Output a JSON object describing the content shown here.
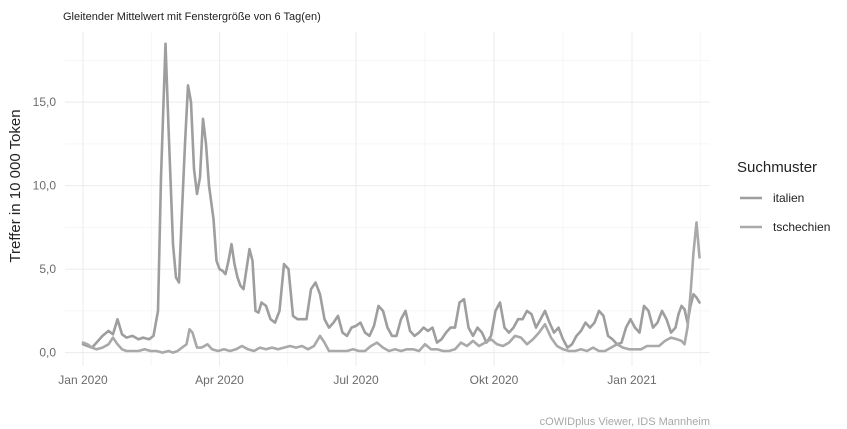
{
  "chart_data": {
    "type": "line",
    "subtitle": "Gleitender Mittelwert mit Fenstergröße von 6 Tag(en)",
    "xlabel": "",
    "ylabel": "Treffer in 10 000 Token",
    "caption": "cOWIDplus Viewer, IDS Mannheim",
    "x_range": [
      "2019-12-20",
      "2021-02-22"
    ],
    "ylim": [
      -0.8,
      19.2
    ],
    "grid": true,
    "legend": {
      "title": "Suchmuster",
      "position": "right"
    },
    "x_ticks": [
      {
        "date": "2020-01-01",
        "label": "Jan 2020"
      },
      {
        "date": "2020-04-01",
        "label": "Apr 2020"
      },
      {
        "date": "2020-07-01",
        "label": "Jul 2020"
      },
      {
        "date": "2020-10-01",
        "label": "Okt 2020"
      },
      {
        "date": "2021-01-01",
        "label": "Jan 2021"
      }
    ],
    "y_ticks": [
      {
        "value": 0,
        "label": "0,0"
      },
      {
        "value": 5,
        "label": "5,0"
      },
      {
        "value": 10,
        "label": "10,0"
      },
      {
        "value": 15,
        "label": "15,0"
      }
    ],
    "series": [
      {
        "name": "italien",
        "color": "#9e9e9e",
        "points": [
          [
            "2020-01-01",
            0.5
          ],
          [
            "2020-01-04",
            0.4
          ],
          [
            "2020-01-07",
            0.3
          ],
          [
            "2020-01-10",
            0.6
          ],
          [
            "2020-01-14",
            1.0
          ],
          [
            "2020-01-18",
            1.3
          ],
          [
            "2020-01-21",
            1.1
          ],
          [
            "2020-01-24",
            2.0
          ],
          [
            "2020-01-27",
            1.1
          ],
          [
            "2020-01-30",
            0.9
          ],
          [
            "2020-02-03",
            1.0
          ],
          [
            "2020-02-07",
            0.8
          ],
          [
            "2020-02-10",
            0.9
          ],
          [
            "2020-02-14",
            0.8
          ],
          [
            "2020-02-17",
            1.0
          ],
          [
            "2020-02-20",
            2.5
          ],
          [
            "2020-02-22",
            10.5
          ],
          [
            "2020-02-25",
            18.5
          ],
          [
            "2020-02-27",
            13.5
          ],
          [
            "2020-03-01",
            6.5
          ],
          [
            "2020-03-03",
            4.5
          ],
          [
            "2020-03-05",
            4.2
          ],
          [
            "2020-03-07",
            8.5
          ],
          [
            "2020-03-09",
            12.5
          ],
          [
            "2020-03-11",
            16.0
          ],
          [
            "2020-03-13",
            15.0
          ],
          [
            "2020-03-15",
            11.0
          ],
          [
            "2020-03-17",
            9.5
          ],
          [
            "2020-03-19",
            10.5
          ],
          [
            "2020-03-21",
            14.0
          ],
          [
            "2020-03-23",
            12.5
          ],
          [
            "2020-03-25",
            10.0
          ],
          [
            "2020-03-28",
            8.0
          ],
          [
            "2020-03-30",
            5.5
          ],
          [
            "2020-04-01",
            5.0
          ],
          [
            "2020-04-03",
            4.9
          ],
          [
            "2020-04-05",
            4.7
          ],
          [
            "2020-04-07",
            5.5
          ],
          [
            "2020-04-09",
            6.5
          ],
          [
            "2020-04-11",
            5.3
          ],
          [
            "2020-04-13",
            4.5
          ],
          [
            "2020-04-15",
            4.0
          ],
          [
            "2020-04-17",
            3.8
          ],
          [
            "2020-04-19",
            5.0
          ],
          [
            "2020-04-21",
            6.2
          ],
          [
            "2020-04-23",
            5.5
          ],
          [
            "2020-04-25",
            2.5
          ],
          [
            "2020-04-27",
            2.4
          ],
          [
            "2020-04-29",
            3.0
          ],
          [
            "2020-05-02",
            2.8
          ],
          [
            "2020-05-05",
            2.0
          ],
          [
            "2020-05-08",
            1.8
          ],
          [
            "2020-05-11",
            2.5
          ],
          [
            "2020-05-14",
            5.3
          ],
          [
            "2020-05-17",
            5.0
          ],
          [
            "2020-05-20",
            2.2
          ],
          [
            "2020-05-23",
            2.0
          ],
          [
            "2020-05-26",
            2.0
          ],
          [
            "2020-05-29",
            2.0
          ],
          [
            "2020-06-01",
            3.8
          ],
          [
            "2020-06-04",
            4.2
          ],
          [
            "2020-06-07",
            3.5
          ],
          [
            "2020-06-10",
            2.0
          ],
          [
            "2020-06-13",
            1.5
          ],
          [
            "2020-06-16",
            1.8
          ],
          [
            "2020-06-19",
            2.2
          ],
          [
            "2020-06-22",
            1.2
          ],
          [
            "2020-06-25",
            1.0
          ],
          [
            "2020-06-28",
            1.5
          ],
          [
            "2020-07-01",
            1.6
          ],
          [
            "2020-07-04",
            1.8
          ],
          [
            "2020-07-07",
            1.2
          ],
          [
            "2020-07-10",
            1.0
          ],
          [
            "2020-07-13",
            1.6
          ],
          [
            "2020-07-16",
            2.8
          ],
          [
            "2020-07-19",
            2.5
          ],
          [
            "2020-07-22",
            1.5
          ],
          [
            "2020-07-25",
            1.0
          ],
          [
            "2020-07-28",
            1.0
          ],
          [
            "2020-07-31",
            2.0
          ],
          [
            "2020-08-03",
            2.5
          ],
          [
            "2020-08-06",
            1.3
          ],
          [
            "2020-08-09",
            1.0
          ],
          [
            "2020-08-12",
            1.2
          ],
          [
            "2020-08-15",
            1.5
          ],
          [
            "2020-08-18",
            1.3
          ],
          [
            "2020-08-21",
            1.5
          ],
          [
            "2020-08-24",
            0.6
          ],
          [
            "2020-08-27",
            0.8
          ],
          [
            "2020-08-30",
            1.2
          ],
          [
            "2020-09-02",
            1.5
          ],
          [
            "2020-09-05",
            1.5
          ],
          [
            "2020-09-08",
            3.0
          ],
          [
            "2020-09-11",
            3.2
          ],
          [
            "2020-09-14",
            1.5
          ],
          [
            "2020-09-17",
            1.0
          ],
          [
            "2020-09-20",
            1.5
          ],
          [
            "2020-09-23",
            1.2
          ],
          [
            "2020-09-26",
            0.6
          ],
          [
            "2020-09-29",
            1.0
          ],
          [
            "2020-10-02",
            2.5
          ],
          [
            "2020-10-05",
            3.0
          ],
          [
            "2020-10-08",
            1.5
          ],
          [
            "2020-10-11",
            1.2
          ],
          [
            "2020-10-14",
            1.5
          ],
          [
            "2020-10-17",
            2.0
          ],
          [
            "2020-10-20",
            2.0
          ],
          [
            "2020-10-23",
            2.5
          ],
          [
            "2020-10-26",
            2.3
          ],
          [
            "2020-10-29",
            1.5
          ],
          [
            "2020-11-01",
            2.0
          ],
          [
            "2020-11-04",
            2.5
          ],
          [
            "2020-11-07",
            1.8
          ],
          [
            "2020-11-10",
            1.2
          ],
          [
            "2020-11-13",
            1.5
          ],
          [
            "2020-11-16",
            0.8
          ],
          [
            "2020-11-19",
            0.3
          ],
          [
            "2020-11-22",
            0.5
          ],
          [
            "2020-11-25",
            1.0
          ],
          [
            "2020-11-28",
            1.3
          ],
          [
            "2020-12-01",
            1.8
          ],
          [
            "2020-12-04",
            1.5
          ],
          [
            "2020-12-07",
            1.8
          ],
          [
            "2020-12-10",
            2.5
          ],
          [
            "2020-12-13",
            2.2
          ],
          [
            "2020-12-16",
            1.0
          ],
          [
            "2020-12-19",
            0.8
          ],
          [
            "2020-12-22",
            0.5
          ],
          [
            "2020-12-25",
            0.6
          ],
          [
            "2020-12-28",
            1.5
          ],
          [
            "2020-12-31",
            2.0
          ],
          [
            "2021-01-03",
            1.5
          ],
          [
            "2021-01-06",
            1.2
          ],
          [
            "2021-01-09",
            2.8
          ],
          [
            "2021-01-12",
            2.5
          ],
          [
            "2021-01-15",
            1.5
          ],
          [
            "2021-01-18",
            1.8
          ],
          [
            "2021-01-21",
            2.5
          ],
          [
            "2021-01-24",
            2.0
          ],
          [
            "2021-01-27",
            1.2
          ],
          [
            "2021-01-30",
            1.5
          ],
          [
            "2021-02-01",
            2.3
          ],
          [
            "2021-02-03",
            2.8
          ],
          [
            "2021-02-05",
            2.6
          ],
          [
            "2021-02-07",
            1.8
          ],
          [
            "2021-02-09",
            2.8
          ],
          [
            "2021-02-11",
            3.5
          ],
          [
            "2021-02-13",
            3.3
          ],
          [
            "2021-02-15",
            3.0
          ]
        ]
      },
      {
        "name": "tschechien",
        "color": "#a9a9a9",
        "points": [
          [
            "2020-01-01",
            0.6
          ],
          [
            "2020-01-04",
            0.5
          ],
          [
            "2020-01-07",
            0.3
          ],
          [
            "2020-01-10",
            0.2
          ],
          [
            "2020-01-14",
            0.3
          ],
          [
            "2020-01-18",
            0.5
          ],
          [
            "2020-01-21",
            0.9
          ],
          [
            "2020-01-24",
            0.5
          ],
          [
            "2020-01-27",
            0.2
          ],
          [
            "2020-01-30",
            0.1
          ],
          [
            "2020-02-03",
            0.1
          ],
          [
            "2020-02-07",
            0.1
          ],
          [
            "2020-02-11",
            0.2
          ],
          [
            "2020-02-15",
            0.1
          ],
          [
            "2020-02-19",
            0.1
          ],
          [
            "2020-02-23",
            0.0
          ],
          [
            "2020-02-27",
            0.1
          ],
          [
            "2020-03-01",
            0.0
          ],
          [
            "2020-03-04",
            0.1
          ],
          [
            "2020-03-07",
            0.3
          ],
          [
            "2020-03-10",
            0.5
          ],
          [
            "2020-03-12",
            1.4
          ],
          [
            "2020-03-14",
            1.2
          ],
          [
            "2020-03-17",
            0.3
          ],
          [
            "2020-03-20",
            0.3
          ],
          [
            "2020-03-24",
            0.5
          ],
          [
            "2020-03-27",
            0.2
          ],
          [
            "2020-03-31",
            0.1
          ],
          [
            "2020-04-04",
            0.2
          ],
          [
            "2020-04-08",
            0.1
          ],
          [
            "2020-04-12",
            0.2
          ],
          [
            "2020-04-16",
            0.4
          ],
          [
            "2020-04-20",
            0.2
          ],
          [
            "2020-04-24",
            0.1
          ],
          [
            "2020-04-28",
            0.3
          ],
          [
            "2020-05-02",
            0.2
          ],
          [
            "2020-05-06",
            0.3
          ],
          [
            "2020-05-10",
            0.2
          ],
          [
            "2020-05-14",
            0.3
          ],
          [
            "2020-05-18",
            0.4
          ],
          [
            "2020-05-22",
            0.3
          ],
          [
            "2020-05-26",
            0.4
          ],
          [
            "2020-05-30",
            0.2
          ],
          [
            "2020-06-03",
            0.4
          ],
          [
            "2020-06-07",
            1.0
          ],
          [
            "2020-06-10",
            0.6
          ],
          [
            "2020-06-13",
            0.1
          ],
          [
            "2020-06-17",
            0.1
          ],
          [
            "2020-06-21",
            0.1
          ],
          [
            "2020-06-25",
            0.1
          ],
          [
            "2020-06-29",
            0.2
          ],
          [
            "2020-07-03",
            0.1
          ],
          [
            "2020-07-07",
            0.1
          ],
          [
            "2020-07-11",
            0.4
          ],
          [
            "2020-07-15",
            0.6
          ],
          [
            "2020-07-19",
            0.3
          ],
          [
            "2020-07-23",
            0.1
          ],
          [
            "2020-07-27",
            0.2
          ],
          [
            "2020-07-31",
            0.1
          ],
          [
            "2020-08-04",
            0.2
          ],
          [
            "2020-08-08",
            0.2
          ],
          [
            "2020-08-12",
            0.1
          ],
          [
            "2020-08-16",
            0.5
          ],
          [
            "2020-08-20",
            0.2
          ],
          [
            "2020-08-24",
            0.2
          ],
          [
            "2020-08-28",
            0.1
          ],
          [
            "2020-09-01",
            0.1
          ],
          [
            "2020-09-05",
            0.2
          ],
          [
            "2020-09-09",
            0.6
          ],
          [
            "2020-09-13",
            0.4
          ],
          [
            "2020-09-17",
            0.7
          ],
          [
            "2020-09-21",
            0.4
          ],
          [
            "2020-09-25",
            0.6
          ],
          [
            "2020-09-29",
            0.8
          ],
          [
            "2020-10-03",
            0.5
          ],
          [
            "2020-10-07",
            0.4
          ],
          [
            "2020-10-11",
            0.6
          ],
          [
            "2020-10-15",
            1.0
          ],
          [
            "2020-10-19",
            0.9
          ],
          [
            "2020-10-23",
            0.5
          ],
          [
            "2020-10-27",
            0.8
          ],
          [
            "2020-10-31",
            1.2
          ],
          [
            "2020-11-04",
            1.7
          ],
          [
            "2020-11-08",
            0.9
          ],
          [
            "2020-11-12",
            0.4
          ],
          [
            "2020-11-16",
            0.2
          ],
          [
            "2020-11-20",
            0.1
          ],
          [
            "2020-11-24",
            0.1
          ],
          [
            "2020-11-28",
            0.2
          ],
          [
            "2020-12-02",
            0.1
          ],
          [
            "2020-12-06",
            0.3
          ],
          [
            "2020-12-10",
            0.1
          ],
          [
            "2020-12-14",
            0.1
          ],
          [
            "2020-12-18",
            0.3
          ],
          [
            "2020-12-22",
            0.5
          ],
          [
            "2020-12-26",
            0.3
          ],
          [
            "2020-12-30",
            0.2
          ],
          [
            "2021-01-03",
            0.2
          ],
          [
            "2021-01-07",
            0.2
          ],
          [
            "2021-01-11",
            0.4
          ],
          [
            "2021-01-15",
            0.4
          ],
          [
            "2021-01-19",
            0.4
          ],
          [
            "2021-01-23",
            0.7
          ],
          [
            "2021-01-27",
            0.9
          ],
          [
            "2021-01-31",
            0.8
          ],
          [
            "2021-02-03",
            0.7
          ],
          [
            "2021-02-05",
            0.5
          ],
          [
            "2021-02-07",
            1.5
          ],
          [
            "2021-02-09",
            3.5
          ],
          [
            "2021-02-11",
            6.0
          ],
          [
            "2021-02-13",
            7.8
          ],
          [
            "2021-02-15",
            5.7
          ]
        ]
      }
    ]
  }
}
